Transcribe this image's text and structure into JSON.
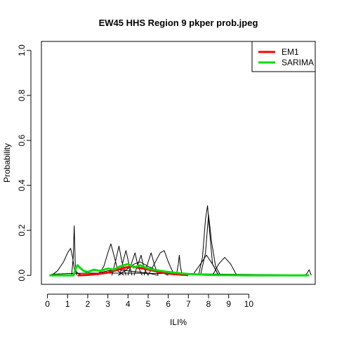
{
  "chart_data": {
    "type": "line",
    "title": "EW45 HHS Region 9 pkper prob.jpeg",
    "xlabel": "ILI%",
    "ylabel": "Probability",
    "xlim": [
      -0.3,
      13.3
    ],
    "ylim": [
      -0.04,
      1.04
    ],
    "x_ticks": [
      {
        "value": 0,
        "label": "0"
      },
      {
        "value": 1,
        "label": "1"
      },
      {
        "value": 2,
        "label": "2"
      },
      {
        "value": 3,
        "label": "3"
      },
      {
        "value": 4,
        "label": "4"
      },
      {
        "value": 5,
        "label": "5"
      },
      {
        "value": 6,
        "label": "6"
      },
      {
        "value": 7,
        "label": "7"
      },
      {
        "value": 8,
        "label": "8"
      },
      {
        "value": 9,
        "label": "9"
      },
      {
        "value": 10,
        "label": "10"
      }
    ],
    "y_ticks": [
      {
        "value": 0.0,
        "label": "0.0"
      },
      {
        "value": 0.2,
        "label": "0.2"
      },
      {
        "value": 0.4,
        "label": "0.4"
      },
      {
        "value": 0.6,
        "label": "0.6"
      },
      {
        "value": 0.8,
        "label": "0.8"
      },
      {
        "value": 1.0,
        "label": "1.0"
      }
    ],
    "grid": false,
    "legend_position": "top-right",
    "legend": [
      {
        "label": "EM1",
        "color": "#ff0000"
      },
      {
        "label": "SARIMA",
        "color": "#00dd00"
      }
    ],
    "series": [
      {
        "name": "EM1",
        "color": "#ff0000",
        "width": 3,
        "x": [
          1.5,
          2.0,
          2.5,
          3.0,
          3.3,
          3.6,
          3.9,
          4.2,
          4.5,
          4.8,
          5.1,
          5.4,
          5.7,
          6.0,
          6.5,
          7.0
        ],
        "y": [
          0.0,
          0.002,
          0.006,
          0.012,
          0.02,
          0.028,
          0.035,
          0.04,
          0.034,
          0.03,
          0.024,
          0.018,
          0.012,
          0.008,
          0.004,
          0.001
        ]
      },
      {
        "name": "SARIMA",
        "color": "#00dd00",
        "width": 3,
        "x": [
          0.1,
          1.3,
          1.4,
          1.5,
          1.6,
          1.8,
          2.0,
          2.3,
          2.6,
          3.0,
          3.3,
          3.6,
          4.0,
          4.3,
          4.6,
          5.0,
          5.3,
          5.6,
          6.0,
          6.5,
          7.0,
          7.5,
          8.0,
          8.5,
          9.0,
          10.0,
          11.0,
          12.0,
          13.0
        ],
        "y": [
          0.0,
          0.0,
          0.03,
          0.045,
          0.035,
          0.02,
          0.015,
          0.025,
          0.02,
          0.03,
          0.025,
          0.04,
          0.05,
          0.035,
          0.045,
          0.03,
          0.025,
          0.02,
          0.015,
          0.01,
          0.006,
          0.004,
          0.002,
          0.001,
          0.001,
          0.0,
          0.0,
          0.0,
          0.0
        ]
      },
      {
        "x": [
          0.2,
          0.5,
          0.8,
          1.0,
          1.15,
          1.25,
          1.35,
          1.6,
          2.0
        ],
        "y": [
          0.0,
          0.02,
          0.06,
          0.1,
          0.12,
          0.08,
          0.02,
          0.005,
          0.0
        ]
      },
      {
        "x": [
          1.2,
          1.28,
          1.33,
          1.38,
          1.45
        ],
        "y": [
          0.0,
          0.08,
          0.22,
          0.05,
          0.0
        ]
      },
      {
        "x": [
          2.5,
          2.8,
          3.0,
          3.15,
          3.3,
          3.5,
          3.8
        ],
        "y": [
          0.0,
          0.04,
          0.1,
          0.14,
          0.09,
          0.02,
          0.0
        ]
      },
      {
        "x": [
          3.2,
          3.4,
          3.55,
          3.7,
          3.9
        ],
        "y": [
          0.0,
          0.07,
          0.13,
          0.06,
          0.0
        ]
      },
      {
        "x": [
          3.6,
          3.75,
          3.9,
          4.05,
          4.2
        ],
        "y": [
          0.0,
          0.06,
          0.11,
          0.05,
          0.0
        ]
      },
      {
        "x": [
          4.0,
          4.2,
          4.35,
          4.5,
          4.7
        ],
        "y": [
          0.0,
          0.06,
          0.1,
          0.04,
          0.0
        ]
      },
      {
        "x": [
          4.3,
          4.5,
          4.65,
          4.8,
          5.0
        ],
        "y": [
          0.0,
          0.05,
          0.09,
          0.03,
          0.0
        ]
      },
      {
        "x": [
          4.8,
          5.0,
          5.15,
          5.3,
          5.5
        ],
        "y": [
          0.0,
          0.06,
          0.1,
          0.05,
          0.0
        ]
      },
      {
        "x": [
          5.0,
          5.3,
          5.6,
          5.8,
          6.0,
          6.3
        ],
        "y": [
          0.0,
          0.05,
          0.1,
          0.11,
          0.06,
          0.0
        ]
      },
      {
        "x": [
          6.4,
          6.5,
          6.55,
          6.6,
          6.7
        ],
        "y": [
          0.0,
          0.05,
          0.09,
          0.04,
          0.0
        ]
      },
      {
        "x": [
          3.5,
          4.0,
          4.3,
          4.6,
          5.0,
          5.5,
          6.0
        ],
        "y": [
          0.0,
          0.03,
          0.05,
          0.06,
          0.04,
          0.02,
          0.0
        ]
      },
      {
        "x": [
          2.0,
          2.5,
          3.0,
          3.5,
          4.0,
          4.5,
          5.0,
          5.5
        ],
        "y": [
          0.0,
          0.01,
          0.02,
          0.025,
          0.02,
          0.015,
          0.01,
          0.0
        ]
      },
      {
        "x": [
          7.5,
          7.7,
          7.85,
          7.95,
          8.05,
          8.2,
          8.5
        ],
        "y": [
          0.0,
          0.08,
          0.25,
          0.31,
          0.2,
          0.05,
          0.0
        ]
      },
      {
        "x": [
          7.6,
          7.85,
          8.0,
          8.15,
          8.35,
          8.6
        ],
        "y": [
          0.0,
          0.1,
          0.27,
          0.15,
          0.04,
          0.0
        ]
      },
      {
        "x": [
          7.2,
          7.6,
          7.9,
          8.2,
          8.5
        ],
        "y": [
          0.0,
          0.05,
          0.09,
          0.05,
          0.0
        ]
      },
      {
        "x": [
          8.2,
          8.5,
          8.8,
          9.1,
          9.4
        ],
        "y": [
          0.0,
          0.05,
          0.08,
          0.05,
          0.0
        ]
      },
      {
        "x": [
          12.8,
          12.9,
          13.0,
          13.1
        ],
        "y": [
          0.0,
          0.01,
          0.025,
          0.0
        ]
      },
      {
        "x": [
          0.2,
          1.0,
          2.0,
          4.0,
          6.0,
          8.0,
          10.0,
          12.0,
          13.0
        ],
        "y": [
          0.005,
          0.008,
          0.01,
          0.01,
          0.008,
          0.006,
          0.004,
          0.002,
          0.0
        ]
      }
    ]
  }
}
